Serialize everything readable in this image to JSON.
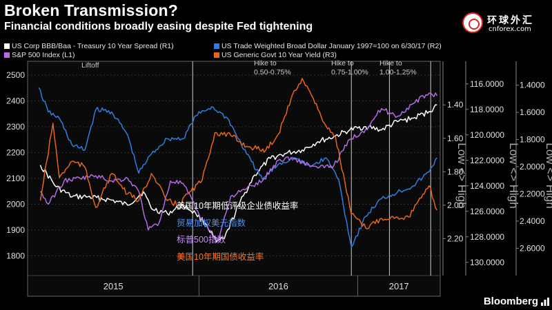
{
  "title": "Broken Transmission?",
  "subtitle": "Financial conditions broadly easing despite Fed tightening",
  "logo": {
    "cn": "环球外汇",
    "en": "cnforex.com",
    "icon": "cnforex-logo-icon"
  },
  "footer": {
    "brand": "Bloomberg",
    "icon": "bloomberg-terminal-icon"
  },
  "legend": [
    {
      "label": "US Corp BBB/Baa - Treasury 10 Year Spread  (R1)",
      "color": "#ffffff"
    },
    {
      "label": "US Trade Weighted Broad Dollar January 1997=100  on 6/30/17  (R2)",
      "color": "#2f7fe0"
    },
    {
      "label": "S&P 500 Index  (L1)",
      "color": "#b56be8"
    },
    {
      "label": "US Generic Govt 10 Year Yield  (R3)",
      "color": "#e8661a"
    }
  ],
  "events": [
    {
      "label": "Liftoff",
      "date": 2015.96
    },
    {
      "label": "Hike to 0.50-0.75%",
      "date": 2016.96
    },
    {
      "label": "Hike to 0.75-1.00%",
      "date": 2017.2
    },
    {
      "label": "Hike to 1.00-1.25%",
      "date": 2017.46
    }
  ],
  "cn_annotations": [
    {
      "text": "美国10年期低评级企业债收益率",
      "color": "#ffffff"
    },
    {
      "text": "贸易加权美元指数",
      "color": "#4d8ff0"
    },
    {
      "text": "标普500指数",
      "color": "#c58ef0"
    },
    {
      "text": "美国10年期国债收益率",
      "color": "#f07a2a"
    }
  ],
  "chart_data": {
    "type": "line",
    "x_axis": {
      "type": "date",
      "range": [
        "2014-12-01",
        "2017-07-10"
      ],
      "labels": [
        "2015",
        "2016",
        "2017"
      ]
    },
    "axes": {
      "L1": {
        "min": 1750,
        "max": 2540,
        "ticks": [
          "1800",
          "1900",
          "2000",
          "2100",
          "2200",
          "2300",
          "2400",
          "2500"
        ]
      },
      "R1": {
        "min": 1.16,
        "max": 2.38,
        "inverted": true,
        "ticks": [
          "1.40",
          "1.60",
          "1.80",
          "2.00",
          "2.20"
        ],
        "label": "Low <> High"
      },
      "R2": {
        "min": 114.5,
        "max": 130.5,
        "inverted": true,
        "ticks": [
          "116.0000",
          "118.0000",
          "120.0000",
          "122.0000",
          "124.0000",
          "126.0000",
          "128.0000",
          "130.0000"
        ],
        "label": "Low <> High"
      },
      "R3": {
        "min": 1.25,
        "max": 2.75,
        "inverted": true,
        "ticks": [
          "1.4000",
          "1.6000",
          "1.8000",
          "2.0000",
          "2.2000",
          "2.4000",
          "2.6000"
        ],
        "label": "Low <> High"
      }
    },
    "series": [
      {
        "name": "US Corp BBB/Baa - Treasury 10 Year Spread",
        "axis": "R1",
        "color": "#ffffff",
        "x": [
          2015.0,
          2015.1,
          2015.2,
          2015.3,
          2015.45,
          2015.55,
          2015.65,
          2015.7,
          2015.8,
          2015.9,
          2015.98,
          2016.05,
          2016.11,
          2016.16,
          2016.25,
          2016.35,
          2016.45,
          2016.55,
          2016.65,
          2016.75,
          2016.85,
          2016.95,
          2017.05,
          2017.15,
          2017.25,
          2017.35,
          2017.45,
          2017.5
        ],
        "y": [
          1.76,
          1.89,
          1.95,
          1.95,
          1.97,
          2.0,
          1.92,
          2.02,
          2.05,
          2.0,
          2.05,
          2.12,
          2.22,
          2.2,
          2.0,
          1.82,
          1.72,
          1.69,
          1.67,
          1.62,
          1.59,
          1.55,
          1.53,
          1.55,
          1.5,
          1.48,
          1.44,
          1.4
        ]
      },
      {
        "name": "US Trade Weighted Broad Dollar January 1997=100",
        "axis": "R2",
        "color": "#2f7fe0",
        "x": [
          2014.99,
          2015.05,
          2015.12,
          2015.2,
          2015.28,
          2015.35,
          2015.45,
          2015.55,
          2015.62,
          2015.7,
          2015.8,
          2015.9,
          2015.98,
          2016.08,
          2016.18,
          2016.3,
          2016.4,
          2016.5,
          2016.6,
          2016.7,
          2016.8,
          2016.88,
          2016.96,
          2017.05,
          2017.15,
          2017.25,
          2017.35,
          2017.45,
          2017.5
        ],
        "y": [
          116.3,
          118.2,
          118.7,
          120.8,
          121.2,
          118.0,
          118.2,
          120.0,
          123.0,
          121.5,
          120.3,
          120.3,
          118.5,
          117.8,
          118.7,
          121.5,
          123.5,
          122.3,
          121.8,
          122.5,
          121.8,
          123.5,
          128.8,
          126.4,
          125.0,
          124.5,
          124.0,
          122.9,
          121.8
        ]
      },
      {
        "name": "S&P 500 Index",
        "axis": "L1",
        "color": "#b56be8",
        "x": [
          2015.0,
          2015.05,
          2015.15,
          2015.25,
          2015.35,
          2015.45,
          2015.55,
          2015.62,
          2015.68,
          2015.75,
          2015.82,
          2015.9,
          2016.0,
          2016.06,
          2016.12,
          2016.2,
          2016.3,
          2016.4,
          2016.5,
          2016.58,
          2016.66,
          2016.75,
          2016.85,
          2016.95,
          2017.05,
          2017.15,
          2017.25,
          2017.35,
          2017.45,
          2017.5
        ],
        "y": [
          2050,
          2000,
          2090,
          2100,
          2110,
          2090,
          2100,
          2050,
          1900,
          1930,
          2090,
          2080,
          1960,
          1900,
          1860,
          2030,
          2060,
          2090,
          2170,
          2180,
          2160,
          2140,
          2150,
          2250,
          2290,
          2370,
          2340,
          2390,
          2430,
          2420
        ]
      },
      {
        "name": "US Generic Govt 10 Year Yield",
        "axis": "R3",
        "color": "#e8661a",
        "x": [
          2015.0,
          2015.08,
          2015.12,
          2015.2,
          2015.28,
          2015.35,
          2015.45,
          2015.55,
          2015.62,
          2015.7,
          2015.8,
          2015.87,
          2015.93,
          2016.02,
          2016.1,
          2016.2,
          2016.3,
          2016.42,
          2016.5,
          2016.58,
          2016.65,
          2016.7,
          2016.75,
          2016.8,
          2016.86,
          2016.96,
          2017.05,
          2017.15,
          2017.25,
          2017.32,
          2017.4,
          2017.45,
          2017.5
        ],
        "y": [
          2.25,
          1.68,
          2.08,
          1.96,
          2.0,
          2.3,
          2.05,
          2.2,
          2.25,
          2.05,
          2.25,
          2.28,
          2.2,
          2.1,
          1.75,
          1.77,
          1.85,
          1.88,
          1.76,
          1.5,
          1.35,
          1.45,
          1.58,
          1.7,
          1.78,
          2.35,
          2.45,
          2.38,
          2.37,
          2.37,
          2.23,
          2.14,
          2.32
        ]
      }
    ]
  }
}
